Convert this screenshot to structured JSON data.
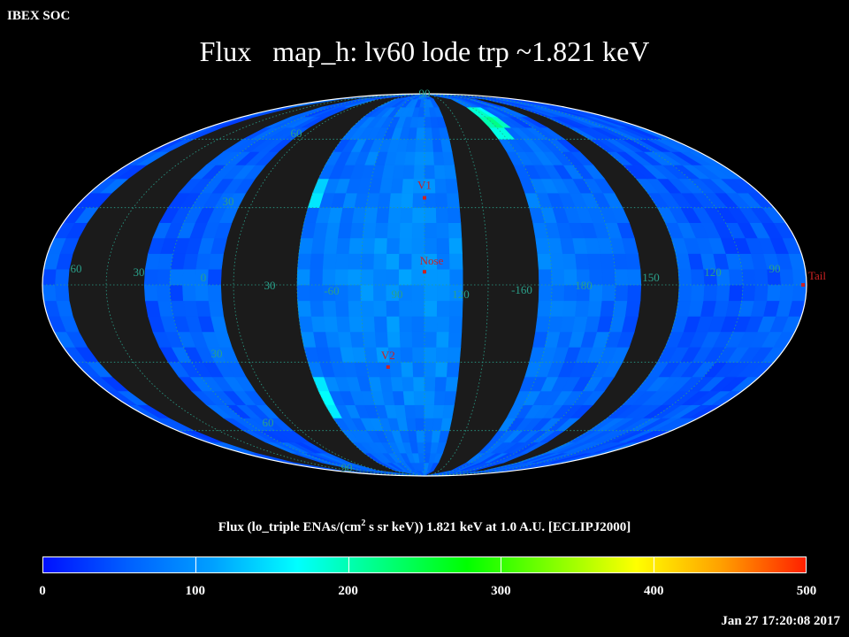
{
  "header": {
    "org": "IBEX SOC",
    "title": "Flux   map_h: lv60 lode trp ~1.821 keV"
  },
  "colorbar": {
    "label_pre": "Flux (lo_triple ENAs/(cm",
    "label_sup": "2",
    "label_post": " s sr keV))  1.821 keV at 1.0 A.U. [ECLIPJ2000]",
    "min": 0,
    "max": 500,
    "ticks": [
      "0",
      "100",
      "200",
      "300",
      "400",
      "500"
    ],
    "colors": [
      "#0010ff",
      "#0060ff",
      "#00a0ff",
      "#00ffff",
      "#00ff80",
      "#00ff00",
      "#80ff00",
      "#ffff00",
      "#ffa000",
      "#ff2000"
    ]
  },
  "map": {
    "projection": "Mollweide (ecliptic J2000)",
    "grid_color": "#2aa08a",
    "marker_color": "#cc2222",
    "lat_labels": [
      "60",
      "30",
      "90",
      "30",
      "60",
      "90"
    ],
    "lon_labels": [
      "60",
      "30",
      "0",
      "30",
      "-60",
      "90",
      "120",
      "-160",
      "180",
      "150",
      "120",
      "90"
    ],
    "markers": [
      {
        "name": "V1",
        "lon": 0,
        "lat": 34
      },
      {
        "name": "Nose",
        "lon": 0,
        "lat": 5
      },
      {
        "name": "V2",
        "lon": -19,
        "lat": -32
      },
      {
        "name": "Tail",
        "lon": 180,
        "lat": 0
      }
    ],
    "no_data_lon_bands": [
      [
        -165,
        -130
      ],
      [
        -95,
        -60
      ],
      [
        20,
        52
      ],
      [
        105,
        118
      ]
    ],
    "green_patches": [
      {
        "lon": 62,
        "lat": 70,
        "flux": 210
      },
      {
        "lon": -65,
        "lat": 35,
        "flux": 180
      },
      {
        "lon": -60,
        "lat": -45,
        "flux": 170
      },
      {
        "lon": -70,
        "lat": -65,
        "flux": 160
      }
    ]
  },
  "footer": {
    "timestamp": "Jan 27 17:20:08 2017"
  }
}
